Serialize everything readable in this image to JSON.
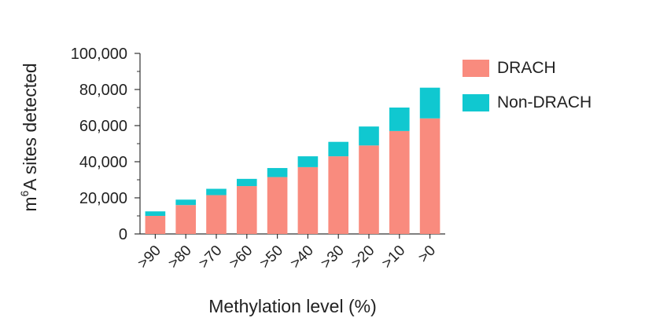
{
  "chart_data": {
    "type": "bar",
    "stacked": true,
    "title": "",
    "xlabel": "Methylation level (%)",
    "ylabel_base": "m",
    "ylabel_sup": "6",
    "ylabel_rest": "A sites detected",
    "categories": [
      ">90",
      ">80",
      ">70",
      ">60",
      ">50",
      ">40",
      ">30",
      ">20",
      ">10",
      ">0"
    ],
    "series": [
      {
        "name": "DRACH",
        "color": "#f98b7e",
        "values": [
          10000,
          16000,
          21500,
          26500,
          31500,
          37000,
          43000,
          49000,
          57000,
          64000
        ]
      },
      {
        "name": "Non-DRACH",
        "color": "#10c8d0",
        "values": [
          2500,
          3000,
          3500,
          4000,
          5000,
          6000,
          8000,
          10500,
          13000,
          17000
        ]
      }
    ],
    "ylim": [
      0,
      100000
    ],
    "yticks": [
      0,
      20000,
      40000,
      60000,
      80000,
      100000
    ],
    "ytick_labels": [
      "0",
      "20,000",
      "40,000",
      "60,000",
      "80,000",
      "100,000"
    ],
    "legend_position": "right",
    "grid": false
  }
}
